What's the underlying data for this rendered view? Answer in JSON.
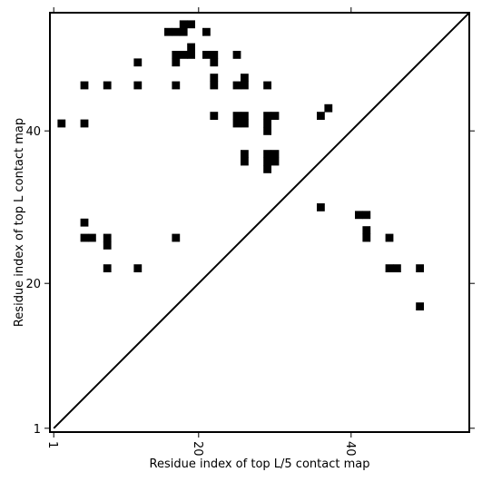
{
  "chart_data": {
    "type": "heatmap",
    "xlabel": "Residue index of top L/5 contact map",
    "ylabel": "Residue index of top L contact map",
    "xlim": [
      0.5,
      55.5
    ],
    "ylim": [
      0.5,
      55.5
    ],
    "x_ticks": [
      1,
      20,
      40
    ],
    "y_ticks": [
      1,
      20,
      40
    ],
    "x_tick_rotation": 90,
    "diagonal_line": true,
    "cell_color": "#000000",
    "background": "#ffffff",
    "contacts_upper": [
      [
        16,
        53
      ],
      [
        17,
        53
      ],
      [
        18,
        53
      ],
      [
        18,
        54
      ],
      [
        19,
        54
      ],
      [
        21,
        53
      ],
      [
        17,
        50
      ],
      [
        18,
        50
      ],
      [
        19,
        50
      ],
      [
        19,
        51
      ],
      [
        21,
        50
      ],
      [
        22,
        50
      ],
      [
        17,
        49
      ],
      [
        22,
        49
      ],
      [
        12,
        49
      ],
      [
        25,
        50
      ],
      [
        5,
        46
      ],
      [
        8,
        46
      ],
      [
        12,
        46
      ],
      [
        17,
        46
      ],
      [
        22,
        46
      ],
      [
        22,
        47
      ],
      [
        25,
        46
      ],
      [
        26,
        46
      ],
      [
        26,
        47
      ],
      [
        29,
        46
      ],
      [
        22,
        42
      ],
      [
        25,
        42
      ],
      [
        26,
        42
      ],
      [
        25,
        41
      ],
      [
        26,
        41
      ],
      [
        29,
        42
      ],
      [
        30,
        42
      ],
      [
        29,
        41
      ],
      [
        29,
        40
      ],
      [
        2,
        41
      ],
      [
        5,
        41
      ],
      [
        36,
        42
      ],
      [
        37,
        43
      ],
      [
        26,
        37
      ],
      [
        26,
        36
      ],
      [
        29,
        37
      ],
      [
        30,
        37
      ],
      [
        29,
        36
      ],
      [
        30,
        36
      ],
      [
        29,
        35
      ]
    ],
    "contacts_lower": [
      [
        36,
        30
      ],
      [
        41,
        29
      ],
      [
        42,
        29
      ],
      [
        42,
        27
      ],
      [
        42,
        26
      ],
      [
        45,
        26
      ],
      [
        45,
        22
      ],
      [
        46,
        22
      ],
      [
        49,
        22
      ],
      [
        49,
        17
      ],
      [
        5,
        28
      ],
      [
        5,
        26
      ],
      [
        6,
        26
      ],
      [
        8,
        26
      ],
      [
        8,
        25
      ],
      [
        17,
        26
      ],
      [
        8,
        22
      ],
      [
        12,
        22
      ]
    ]
  }
}
